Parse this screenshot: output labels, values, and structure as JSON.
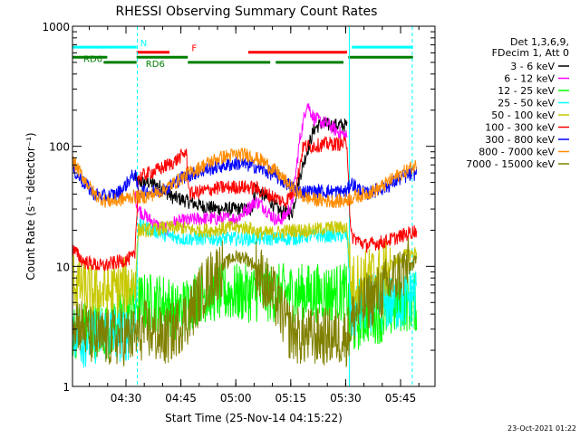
{
  "chart_data": {
    "type": "line",
    "title": "RHESSI Observing Summary Count Rates",
    "xlabel": "Start Time (25-Nov-14 04:15:22)",
    "ylabel": "Count Rate (s⁻¹ detector⁻¹)",
    "yscale": "log",
    "ylim": [
      1,
      1000
    ],
    "xlim_min_after_start": [
      0,
      99
    ],
    "x_ticks": [
      {
        "label": "04:30",
        "min": 14.6
      },
      {
        "label": "04:45",
        "min": 29.6
      },
      {
        "label": "05:00",
        "min": 44.6
      },
      {
        "label": "05:15",
        "min": 59.6
      },
      {
        "label": "05:30",
        "min": 74.6
      },
      {
        "label": "05:45",
        "min": 89.6
      }
    ],
    "y_ticks": [
      {
        "label": "1",
        "value": 1
      },
      {
        "label": "10",
        "value": 10
      },
      {
        "label": "100",
        "value": 100
      },
      {
        "label": "1000",
        "value": 1000
      }
    ],
    "legend": {
      "position": "right",
      "header": [
        "Det 1,3,6,9,",
        "FDecim 1, Att 0"
      ]
    },
    "flags": [
      {
        "label": "N",
        "color": "#00ffff",
        "segments": [
          [
            0,
            17.5
          ],
          [
            76.3,
            93
          ]
        ],
        "level": 0.92
      },
      {
        "label": "F",
        "color": "#ff0000",
        "segments": [
          [
            17.5,
            26.5
          ],
          [
            48,
            75
          ]
        ],
        "level": 0.88
      },
      {
        "label": "RD0",
        "color": "#007f00",
        "segments": [
          [
            0,
            9.5
          ],
          [
            17.5,
            31.5
          ],
          [
            75.3,
            93
          ]
        ],
        "level": 0.84
      },
      {
        "label": "RD6",
        "color": "#007f00",
        "segments": [
          [
            8.5,
            17.5
          ],
          [
            31.5,
            54
          ],
          [
            55.5,
            74
          ]
        ],
        "level": 0.8
      }
    ],
    "vlines": [
      {
        "min": 17.7,
        "color": "#00ffff",
        "style": "dashed"
      },
      {
        "min": 75.6,
        "color": "#00ffff",
        "style": "solid"
      },
      {
        "min": 92.8,
        "color": "#00ffff",
        "style": "dashed"
      }
    ],
    "series": [
      {
        "name": "3 - 6 keV",
        "color": "#000000",
        "points": [
          [
            17,
            55
          ],
          [
            18,
            50
          ],
          [
            21,
            50
          ],
          [
            24,
            46
          ],
          [
            27,
            38
          ],
          [
            30,
            36
          ],
          [
            35,
            32
          ],
          [
            40,
            30
          ],
          [
            45,
            30
          ],
          [
            49,
            30
          ],
          [
            50,
            45
          ],
          [
            54,
            35
          ],
          [
            57,
            28
          ],
          [
            60,
            28
          ],
          [
            62,
            55
          ],
          [
            64,
            90
          ],
          [
            66,
            140
          ],
          [
            68,
            155
          ],
          [
            70,
            150
          ],
          [
            73,
            150
          ],
          [
            75,
            150
          ]
        ]
      },
      {
        "name": "6 - 12 keV",
        "color": "#ff00ff",
        "points": [
          [
            17,
            40
          ],
          [
            18,
            30
          ],
          [
            20,
            26
          ],
          [
            23,
            22
          ],
          [
            26,
            20
          ],
          [
            27,
            23
          ],
          [
            35,
            25
          ],
          [
            45,
            25
          ],
          [
            50,
            35
          ],
          [
            52,
            32
          ],
          [
            54,
            27
          ],
          [
            56,
            24
          ],
          [
            58,
            26
          ],
          [
            60,
            33
          ],
          [
            62,
            110
          ],
          [
            64,
            230
          ],
          [
            66,
            170
          ],
          [
            68,
            160
          ],
          [
            70,
            150
          ],
          [
            73,
            130
          ],
          [
            75,
            120
          ]
        ]
      },
      {
        "name": "12 - 25 keV",
        "color": "#00ff00",
        "points": [
          [
            0,
            3
          ],
          [
            10,
            3
          ],
          [
            15,
            4
          ],
          [
            17,
            5
          ],
          [
            20,
            5
          ],
          [
            26,
            5
          ],
          [
            28,
            4
          ],
          [
            32,
            5
          ],
          [
            35,
            6
          ],
          [
            40,
            6
          ],
          [
            45,
            6
          ],
          [
            50,
            6
          ],
          [
            55,
            6
          ],
          [
            60,
            6
          ],
          [
            65,
            6
          ],
          [
            70,
            6
          ],
          [
            75,
            6
          ],
          [
            76,
            3
          ],
          [
            80,
            4
          ],
          [
            85,
            4
          ],
          [
            90,
            5
          ],
          [
            93,
            5
          ],
          [
            94,
            5
          ]
        ]
      },
      {
        "name": "25 - 50 keV",
        "color": "#00ffff",
        "points": [
          [
            0,
            3
          ],
          [
            3,
            2.5
          ],
          [
            8,
            2.8
          ],
          [
            14,
            2.8
          ],
          [
            17,
            3
          ],
          [
            18,
            22
          ],
          [
            22,
            20
          ],
          [
            26,
            18
          ],
          [
            30,
            17
          ],
          [
            35,
            17
          ],
          [
            40,
            17
          ],
          [
            45,
            17
          ],
          [
            50,
            17
          ],
          [
            55,
            17
          ],
          [
            60,
            17
          ],
          [
            65,
            18
          ],
          [
            70,
            18
          ],
          [
            75,
            18
          ],
          [
            76,
            4
          ],
          [
            80,
            5
          ],
          [
            85,
            5
          ],
          [
            90,
            5
          ],
          [
            93,
            6
          ],
          [
            94,
            6
          ]
        ]
      },
      {
        "name": "50 - 100 keV",
        "color": "#c8c800",
        "points": [
          [
            0,
            8
          ],
          [
            2,
            7
          ],
          [
            5,
            6
          ],
          [
            10,
            6
          ],
          [
            15,
            7
          ],
          [
            17,
            7
          ],
          [
            18,
            20
          ],
          [
            22,
            20
          ],
          [
            25,
            21
          ],
          [
            30,
            21
          ],
          [
            33,
            20
          ],
          [
            38,
            20
          ],
          [
            43,
            21
          ],
          [
            48,
            21
          ],
          [
            51,
            19
          ],
          [
            55,
            19
          ],
          [
            60,
            20
          ],
          [
            65,
            20
          ],
          [
            70,
            21
          ],
          [
            75,
            21
          ],
          [
            76,
            7
          ],
          [
            80,
            8
          ],
          [
            85,
            9
          ],
          [
            90,
            12
          ],
          [
            94,
            13
          ]
        ]
      },
      {
        "name": "100 - 300 keV",
        "color": "#ff0000",
        "points": [
          [
            0,
            14
          ],
          [
            3,
            11
          ],
          [
            8,
            10
          ],
          [
            13,
            11
          ],
          [
            17,
            12
          ],
          [
            18,
            55
          ],
          [
            21,
            60
          ],
          [
            24,
            65
          ],
          [
            28,
            75
          ],
          [
            31,
            90
          ],
          [
            32,
            40
          ],
          [
            35,
            42
          ],
          [
            40,
            45
          ],
          [
            45,
            46
          ],
          [
            50,
            45
          ],
          [
            53,
            40
          ],
          [
            55,
            38
          ],
          [
            58,
            34
          ],
          [
            61,
            45
          ],
          [
            63,
            100
          ],
          [
            65,
            100
          ],
          [
            70,
            105
          ],
          [
            75,
            105
          ],
          [
            76,
            18
          ],
          [
            80,
            15
          ],
          [
            85,
            16
          ],
          [
            90,
            18
          ],
          [
            94,
            20
          ]
        ]
      },
      {
        "name": "300 - 800 keV",
        "color": "#0000ff",
        "points": [
          [
            0,
            65
          ],
          [
            3,
            50
          ],
          [
            6,
            40
          ],
          [
            9,
            38
          ],
          [
            12,
            40
          ],
          [
            14,
            45
          ],
          [
            16,
            55
          ],
          [
            17,
            60
          ],
          [
            18,
            42
          ],
          [
            22,
            42
          ],
          [
            26,
            45
          ],
          [
            30,
            55
          ],
          [
            35,
            62
          ],
          [
            40,
            68
          ],
          [
            45,
            72
          ],
          [
            50,
            68
          ],
          [
            55,
            58
          ],
          [
            57,
            52
          ],
          [
            59,
            48
          ],
          [
            62,
            42
          ],
          [
            65,
            42
          ],
          [
            70,
            42
          ],
          [
            75,
            42
          ],
          [
            76,
            50
          ],
          [
            80,
            40
          ],
          [
            85,
            45
          ],
          [
            90,
            55
          ],
          [
            94,
            60
          ]
        ]
      },
      {
        "name": "800 - 7000 keV",
        "color": "#ff8c00",
        "points": [
          [
            0,
            75
          ],
          [
            3,
            55
          ],
          [
            6,
            40
          ],
          [
            9,
            35
          ],
          [
            12,
            35
          ],
          [
            16,
            38
          ],
          [
            20,
            38
          ],
          [
            24,
            42
          ],
          [
            28,
            50
          ],
          [
            32,
            60
          ],
          [
            36,
            70
          ],
          [
            40,
            80
          ],
          [
            44,
            85
          ],
          [
            48,
            85
          ],
          [
            52,
            75
          ],
          [
            56,
            60
          ],
          [
            60,
            45
          ],
          [
            63,
            38
          ],
          [
            66,
            36
          ],
          [
            70,
            35
          ],
          [
            74,
            35
          ],
          [
            77,
            38
          ],
          [
            80,
            40
          ],
          [
            84,
            45
          ],
          [
            88,
            55
          ],
          [
            92,
            65
          ],
          [
            94,
            70
          ]
        ]
      },
      {
        "name": "7000 - 15000 keV",
        "color": "#808000",
        "points": [
          [
            0,
            4
          ],
          [
            3,
            3
          ],
          [
            6,
            2.5
          ],
          [
            10,
            2.5
          ],
          [
            14,
            2.6
          ],
          [
            17,
            2.6
          ],
          [
            20,
            3
          ],
          [
            25,
            2.5
          ],
          [
            28,
            3
          ],
          [
            32,
            4
          ],
          [
            35,
            6
          ],
          [
            38,
            8
          ],
          [
            41,
            10
          ],
          [
            44,
            12
          ],
          [
            47,
            12
          ],
          [
            50,
            10
          ],
          [
            53,
            7
          ],
          [
            56,
            5
          ],
          [
            59,
            3
          ],
          [
            62,
            2.6
          ],
          [
            66,
            2.6
          ],
          [
            70,
            2.6
          ],
          [
            75,
            2.6
          ],
          [
            77,
            4
          ],
          [
            80,
            5
          ],
          [
            84,
            6
          ],
          [
            88,
            8
          ],
          [
            92,
            10
          ],
          [
            94,
            11
          ]
        ]
      }
    ],
    "grid": false
  },
  "footer": {
    "date": "23-Oct-2021 01:22"
  }
}
